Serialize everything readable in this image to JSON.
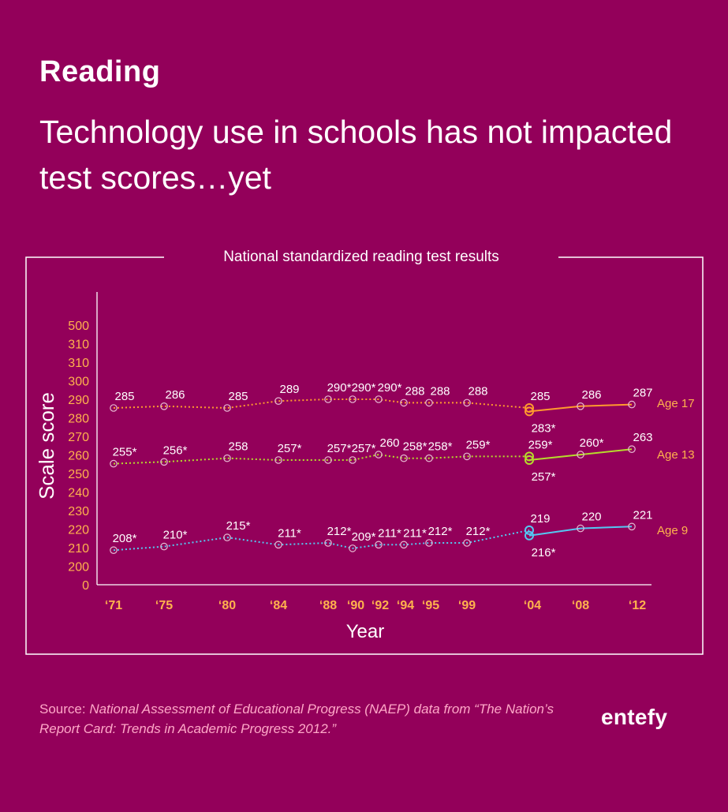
{
  "header": {
    "heading": "Reading",
    "subtitle": "Technology use in schools has not impacted test scores…yet"
  },
  "footer": {
    "source_prefix": "Source: ",
    "source_text": "National Assessment of Educational Progress (NAEP) data from “The Nation’s Report Card: Trends in Academic Progress 2012.”",
    "brand": "entefy"
  },
  "colors": {
    "background": "#93005a",
    "axis_tick": "#ffb34d",
    "age17": "#ff9a2e",
    "age13": "#b6dc2c",
    "age9": "#54c8f2",
    "series_label": "#ffb34d",
    "frame": "#ffffff"
  },
  "chart_data": {
    "type": "line",
    "title": "National standardized reading test results",
    "xlabel": "Year",
    "ylabel": "Scale score",
    "yticks": [
      "0",
      "200",
      "210",
      "220",
      "230",
      "240",
      "250",
      "260",
      "270",
      "280",
      "290",
      "300",
      "310",
      "310",
      "500"
    ],
    "categories": [
      "‘71",
      "‘75",
      "‘80",
      "‘84",
      "‘88",
      "‘90",
      "‘92",
      "‘94",
      "‘95",
      "‘99",
      "‘04",
      "‘04",
      "‘08",
      "‘12"
    ],
    "x_tick_labels": [
      "‘71",
      "‘75",
      "‘80",
      "‘84",
      "‘88",
      "‘90",
      "‘92",
      "‘94",
      "‘95",
      "‘99",
      "‘04",
      "‘08",
      "‘12"
    ],
    "series": [
      {
        "name": "Age 17",
        "values": [
          285,
          286,
          285,
          289,
          290,
          290,
          290,
          288,
          288,
          288,
          285,
          283,
          286,
          287
        ],
        "labels": [
          "285",
          "286",
          "285",
          "289",
          "290*",
          "290*",
          "290*",
          "288",
          "288",
          "288",
          "285",
          "283*",
          "286",
          "287"
        ]
      },
      {
        "name": "Age 13",
        "values": [
          255,
          256,
          258,
          257,
          257,
          257,
          260,
          258,
          258,
          259,
          259,
          257,
          260,
          263
        ],
        "labels": [
          "255*",
          "256*",
          "258",
          "257*",
          "257*",
          "257*",
          "260",
          "258*",
          "258*",
          "259*",
          "259*",
          "257*",
          "260*",
          "263"
        ]
      },
      {
        "name": "Age 9",
        "values": [
          208,
          210,
          215,
          211,
          212,
          209,
          211,
          211,
          212,
          212,
          219,
          216,
          220,
          221
        ],
        "labels": [
          "208*",
          "210*",
          "215*",
          "211*",
          "212*",
          "209*",
          "211*",
          "211*",
          "212*",
          "212*",
          "219",
          "216*",
          "220",
          "221"
        ]
      }
    ],
    "note": "dotted segments before ‘04 (first assessment format), solid segments from ‘04 (revised format)",
    "legend": "right, at end of each line",
    "grid": false
  }
}
